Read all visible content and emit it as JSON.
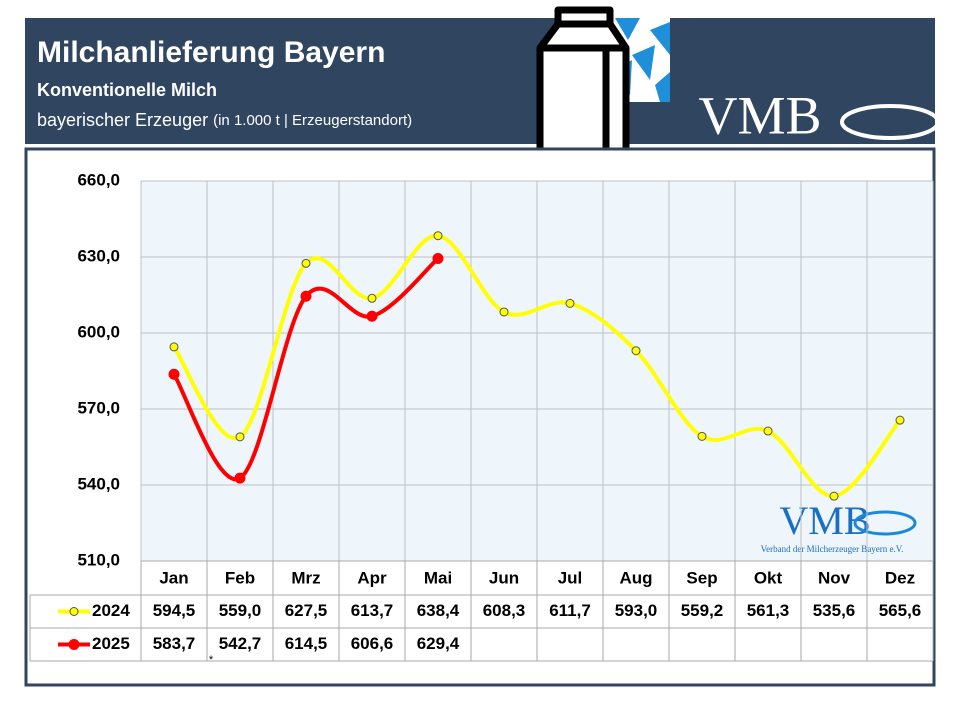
{
  "header": {
    "title": "Milchanlieferung Bayern",
    "subtitle": "Konventionelle Milch",
    "note_main": "bayerischer Erzeuger",
    "note_unit": "(in 1.000 t | Erzeugerstandort)",
    "logo": "VMB"
  },
  "chart_data": {
    "type": "line",
    "categories": [
      "Jan",
      "Feb",
      "Mrz",
      "Apr",
      "Mai",
      "Jun",
      "Jul",
      "Aug",
      "Sep",
      "Okt",
      "Nov",
      "Dez"
    ],
    "series": [
      {
        "name": "2024",
        "color": "#ffff00",
        "values": [
          594.5,
          559.0,
          627.5,
          613.7,
          638.4,
          608.3,
          611.7,
          593.0,
          559.2,
          561.3,
          535.6,
          565.6
        ],
        "value_labels": [
          "594,5",
          "559,0",
          "627,5",
          "613,7",
          "638,4",
          "608,3",
          "611,7",
          "593,0",
          "559,2",
          "561,3",
          "535,6",
          "565,6"
        ]
      },
      {
        "name": "2025",
        "color": "#ff0000",
        "values": [
          583.7,
          542.7,
          614.5,
          606.6,
          629.4,
          null,
          null,
          null,
          null,
          null,
          null,
          null
        ],
        "value_labels": [
          "583,7",
          "542,7",
          "614,5",
          "606,6",
          "629,4",
          null,
          null,
          null,
          null,
          null,
          null,
          null
        ]
      }
    ],
    "ylim": [
      510,
      660
    ],
    "yticks": [
      {
        "value": 510,
        "label": "510,0"
      },
      {
        "value": 540,
        "label": "540,0"
      },
      {
        "value": 570,
        "label": "570,0"
      },
      {
        "value": 600,
        "label": "600,0"
      },
      {
        "value": 630,
        "label": "630,0"
      },
      {
        "value": 660,
        "label": "660,0"
      }
    ],
    "grid": true,
    "footnote": "*",
    "watermark": {
      "logo": "VMB",
      "text": "Verband der Milcherzeuger Bayern e.V."
    }
  }
}
